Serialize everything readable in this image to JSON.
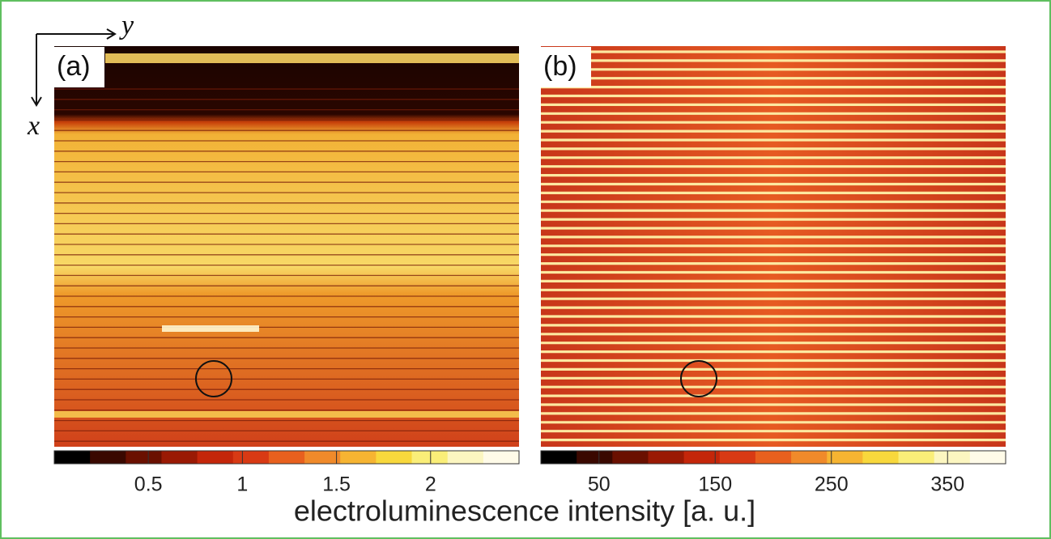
{
  "figure": {
    "axis_y": "y",
    "axis_x": "x",
    "caption_label": "electroluminescence intensity [a. u.]",
    "panels": [
      {
        "label": "(a)",
        "colorbar": {
          "lim": [
            0,
            2.47
          ],
          "ticks": [
            0.5,
            1,
            1.5,
            2
          ]
        }
      },
      {
        "label": "(b)",
        "colorbar": {
          "lim": [
            0,
            400
          ],
          "ticks": [
            50,
            150,
            250,
            350
          ]
        }
      }
    ]
  }
}
